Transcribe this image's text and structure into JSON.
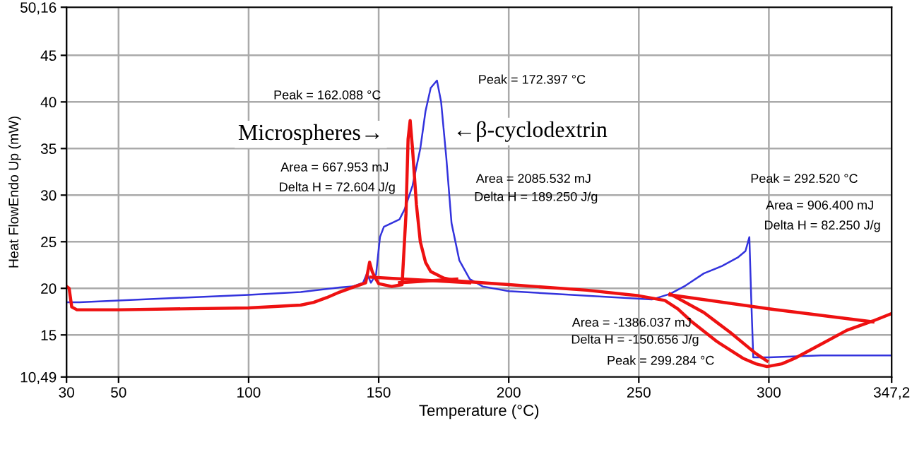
{
  "chart_data": {
    "type": "line",
    "xlabel": "Temperature (°C)",
    "ylabel": "Heat FlowEndo Up (mW)",
    "xlim": [
      30,
      347.2
    ],
    "ylim": [
      10.49,
      50.16
    ],
    "xticks": [
      30,
      50,
      100,
      150,
      200,
      250,
      300,
      {
        "value": 347.2,
        "label": "347,2"
      }
    ],
    "yticks": [
      {
        "value": 10.49,
        "label": "10,49"
      },
      15,
      20,
      25,
      30,
      35,
      40,
      45,
      {
        "value": 50.16,
        "label": "50,16"
      }
    ],
    "grid": true,
    "legend": false,
    "marker": "none",
    "line_style": "solid",
    "series": [
      {
        "color": "#3333dd",
        "x": [
          30,
          35,
          50,
          75,
          100,
          120,
          135,
          140,
          144,
          145.5,
          147,
          149,
          150.5,
          152,
          155,
          158,
          160,
          163,
          166,
          168,
          170,
          172.4,
          174,
          176,
          178,
          181,
          185,
          190,
          200,
          230,
          255,
          262,
          268,
          275,
          282,
          288,
          291,
          292.5,
          293.2,
          294,
          300,
          320,
          347.2
        ],
        "values": [
          18.5,
          18.5,
          18.7,
          19,
          19.3,
          19.6,
          20.1,
          20.2,
          20.6,
          21.6,
          20.6,
          21.5,
          25.5,
          26.6,
          27,
          27.4,
          28.5,
          31,
          35,
          39,
          41.5,
          42.3,
          40,
          34,
          27,
          23,
          21,
          20.2,
          19.7,
          19.2,
          18.8,
          19.4,
          20.3,
          21.6,
          22.4,
          23.3,
          24,
          25.5,
          19,
          12.6,
          12.6,
          12.8,
          12.8
        ]
      },
      {
        "color": "#ee1111",
        "x": [
          30,
          31,
          32,
          34,
          50,
          100,
          120,
          125,
          130,
          135,
          140,
          145,
          146.5,
          147.5,
          148.5,
          150,
          155,
          159,
          160.5,
          161.3,
          162.1,
          163,
          164.5,
          166,
          168,
          170,
          175,
          180,
          200,
          230,
          250,
          260,
          265,
          270,
          280,
          290,
          295,
          299.3,
          305,
          310,
          320,
          330,
          340,
          347.2
        ],
        "values": [
          20.2,
          20,
          18,
          17.7,
          17.7,
          17.9,
          18.2,
          18.5,
          19,
          19.6,
          20.1,
          20.6,
          22.8,
          21.8,
          21.2,
          20.5,
          20.2,
          20.4,
          28,
          36,
          38,
          35,
          29,
          25,
          22.8,
          21.8,
          21.1,
          20.8,
          20.4,
          19.8,
          19.2,
          18.7,
          17.8,
          16.5,
          14.3,
          12.5,
          11.9,
          11.6,
          11.9,
          12.5,
          14,
          15.5,
          16.5,
          17.3
        ]
      },
      {
        "color": "#ee1111",
        "x": [
          147,
          185
        ],
        "values": [
          21.2,
          20.6
        ]
      },
      {
        "color": "#ee1111",
        "x": [
          158,
          180
        ],
        "values": [
          20.6,
          21
        ]
      },
      {
        "color": "#ee1111",
        "x": [
          262,
          300,
          340
        ],
        "values": [
          19.3,
          17.8,
          16.4
        ]
      },
      {
        "color": "#ee1111",
        "x": [
          262,
          275,
          285,
          295,
          299.3
        ],
        "values": [
          19.4,
          17.4,
          15.3,
          13,
          12.2
        ]
      }
    ],
    "annotations": [
      "Peak = 162.088 °C",
      "Peak = 172.397 °C",
      "Microspheres→",
      "←β-cyclodextrin",
      "Area = 667.953 mJ",
      "Delta H = 72.604 J/g",
      "Area = 2085.532 mJ",
      "Delta H = 189.250 J/g",
      "Peak = 292.520 °C",
      "Area = 906.400 mJ",
      "Delta H = 82.250 J/g",
      "Area = -1386.037 mJ",
      "Delta H = -150.656 J/g",
      "Peak = 299.284 °C"
    ]
  }
}
